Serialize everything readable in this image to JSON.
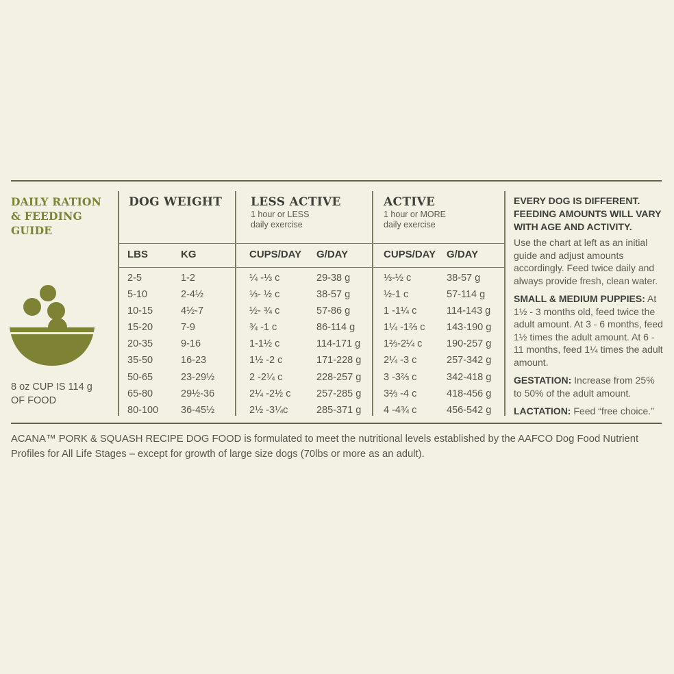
{
  "guide_title": "DAILY RATION & FEEDING GUIDE",
  "cup_note": "8 oz CUP IS 114 g OF FOOD",
  "sections": {
    "dog_weight": {
      "title": "DOG WEIGHT"
    },
    "less_active": {
      "title": "LESS ACTIVE",
      "subtitle_1": "1 hour or LESS",
      "subtitle_2": "daily exercise"
    },
    "active": {
      "title": "ACTIVE",
      "subtitle_1": "1 hour or MORE",
      "subtitle_2": "daily exercise"
    }
  },
  "columns": {
    "lbs": {
      "header": "LBS",
      "values": [
        "2-5",
        "5-10",
        "10-15",
        "15-20",
        "20-35",
        "35-50",
        "50-65",
        "65-80",
        "80-100"
      ]
    },
    "kg": {
      "header": "KG",
      "values": [
        "1-2",
        "2-4½",
        "4½-7",
        "7-9",
        "9-16",
        "16-23",
        "23-29½",
        "29½-36",
        "36-45½"
      ]
    },
    "less_cups": {
      "header": "CUPS/DAY",
      "values": [
        "¼ -⅓ c",
        "⅓- ½ c",
        "½- ¾ c",
        "¾ -1 c",
        "1-1½ c",
        "1½ -2 c",
        "2 -2¼ c",
        "2¼ -2½ c",
        "2½ -3¼c"
      ]
    },
    "less_grams": {
      "header": "G/DAY",
      "values": [
        "29-38 g",
        "38-57 g",
        "57-86 g",
        "86-114 g",
        "114-171 g",
        "171-228 g",
        "228-257 g",
        "257-285 g",
        "285-371 g"
      ]
    },
    "active_cups": {
      "header": "CUPS/DAY",
      "values": [
        "⅓-½ c",
        "½-1 c",
        "1 -1¼ c",
        "1¼ -1⅔ c",
        "1⅔-2¼ c",
        "2¼ -3 c",
        "3 -3⅔ c",
        "3⅔ -4 c",
        "4 -4¾ c"
      ]
    },
    "active_grams": {
      "header": "G/DAY",
      "values": [
        "38-57 g",
        "57-114 g",
        "114-143 g",
        "143-190 g",
        "190-257 g",
        "257-342 g",
        "342-418 g",
        "418-456 g",
        "456-542 g"
      ]
    }
  },
  "sidebar": {
    "lead": "EVERY DOG IS DIFFERENT. FEEDING AMOUNTS WILL VARY WITH AGE AND ACTIVITY.",
    "intro": "Use the chart at left as an initial guide and adjust amounts accordingly. Feed twice daily and always provide fresh, clean water.",
    "puppies_label": "SMALL & MEDIUM PUPPIES:",
    "puppies_text": "At 1½ - 3 months old, feed twice the adult amount. At 3 - 6 months, feed 1½ times the adult amount. At 6 - 11 months, feed 1¼ times the adult amount.",
    "gestation_label": "GESTATION:",
    "gestation_text": "Increase from 25% to 50% of the adult amount.",
    "lactation_label": "LACTATION:",
    "lactation_text": "Feed “free choice.”"
  },
  "footer": "ACANA™ PORK & SQUASH RECIPE DOG FOOD is formulated to meet the nutritional levels established by the AAFCO Dog Food Nutrient Profiles for All Life Stages – except for growth of large size dogs (70lbs or more as an adult).",
  "colors": {
    "background": "#f2f1e3",
    "accent": "#7d8234",
    "text": "#55554d",
    "rule": "#5f6048"
  }
}
